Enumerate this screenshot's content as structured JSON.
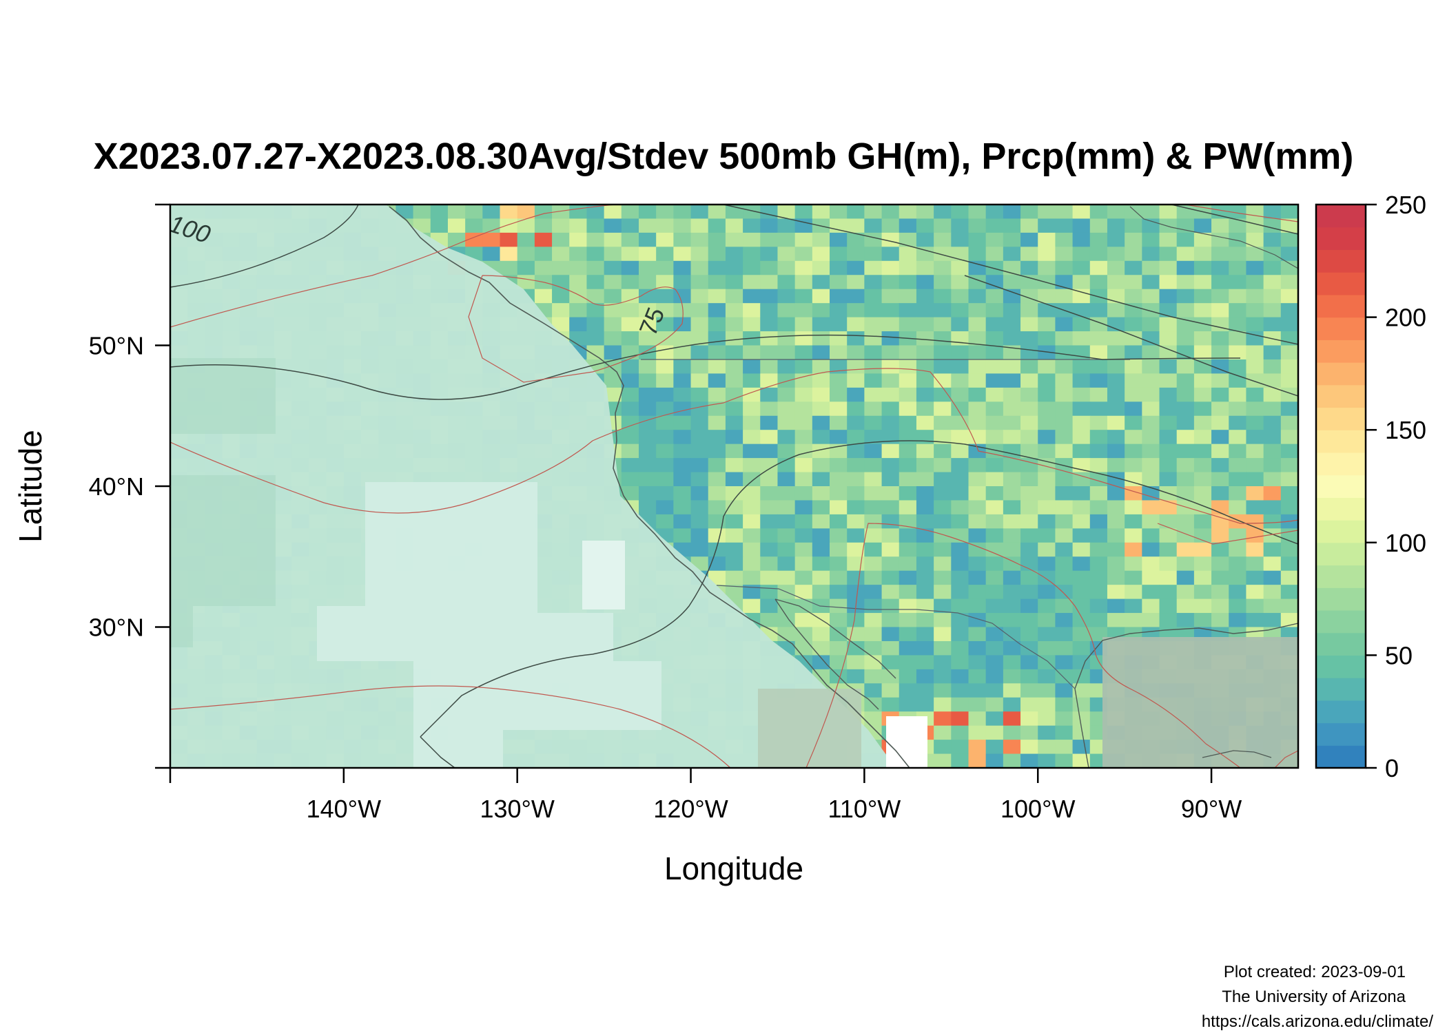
{
  "title": "X2023.07.27-X2023.08.30Avg/Stdev 500mb GH(m), Prcp(mm) & PW(mm)",
  "map": {
    "xlabel": "Longitude",
    "ylabel": "Latitude",
    "lon_range": [
      -150,
      -85
    ],
    "lat_range": [
      20,
      60
    ],
    "x_ticks": [
      {
        "lon": -140,
        "label": "140°W"
      },
      {
        "lon": -130,
        "label": "130°W"
      },
      {
        "lon": -120,
        "label": "120°W"
      },
      {
        "lon": -110,
        "label": "110°W"
      },
      {
        "lon": -100,
        "label": "100°W"
      },
      {
        "lon": -90,
        "label": "90°W"
      }
    ],
    "y_ticks": [
      {
        "lat": 30,
        "label": "30°N"
      },
      {
        "lat": 40,
        "label": "40°N"
      },
      {
        "lat": 50,
        "label": "50°N"
      }
    ],
    "contour_labels": [
      {
        "text": "100",
        "lon": -148.8,
        "lat": 58.4
      },
      {
        "text": "75",
        "lon": -122.8,
        "lat": 52.0
      }
    ]
  },
  "colorbar": {
    "min": 0,
    "max": 250,
    "ticks": [
      {
        "value": 0,
        "label": "0"
      },
      {
        "value": 50,
        "label": "50"
      },
      {
        "value": 100,
        "label": "100"
      },
      {
        "value": 150,
        "label": "150"
      },
      {
        "value": 200,
        "label": "200"
      },
      {
        "value": 250,
        "label": "250"
      }
    ],
    "colors": [
      "#3182bd",
      "#3f95c0",
      "#4aa6bb",
      "#58b6b0",
      "#66c2a5",
      "#77c9a0",
      "#8bd29f",
      "#9fda9e",
      "#b4e39d",
      "#c8ec9d",
      "#dcf39e",
      "#eef7a6",
      "#fbfbb6",
      "#fef3aa",
      "#fee89a",
      "#fed98a",
      "#fdc77b",
      "#fcb36d",
      "#fb9c5f",
      "#f88553",
      "#f26f4a",
      "#e85a44",
      "#dd4a44",
      "#d43f48",
      "#cc3b4d"
    ]
  },
  "credits": {
    "line1": "Plot created: 2023-09-01",
    "line2": "The University of Arizona",
    "line3": "https://cals.arizona.edu/climate/"
  }
}
